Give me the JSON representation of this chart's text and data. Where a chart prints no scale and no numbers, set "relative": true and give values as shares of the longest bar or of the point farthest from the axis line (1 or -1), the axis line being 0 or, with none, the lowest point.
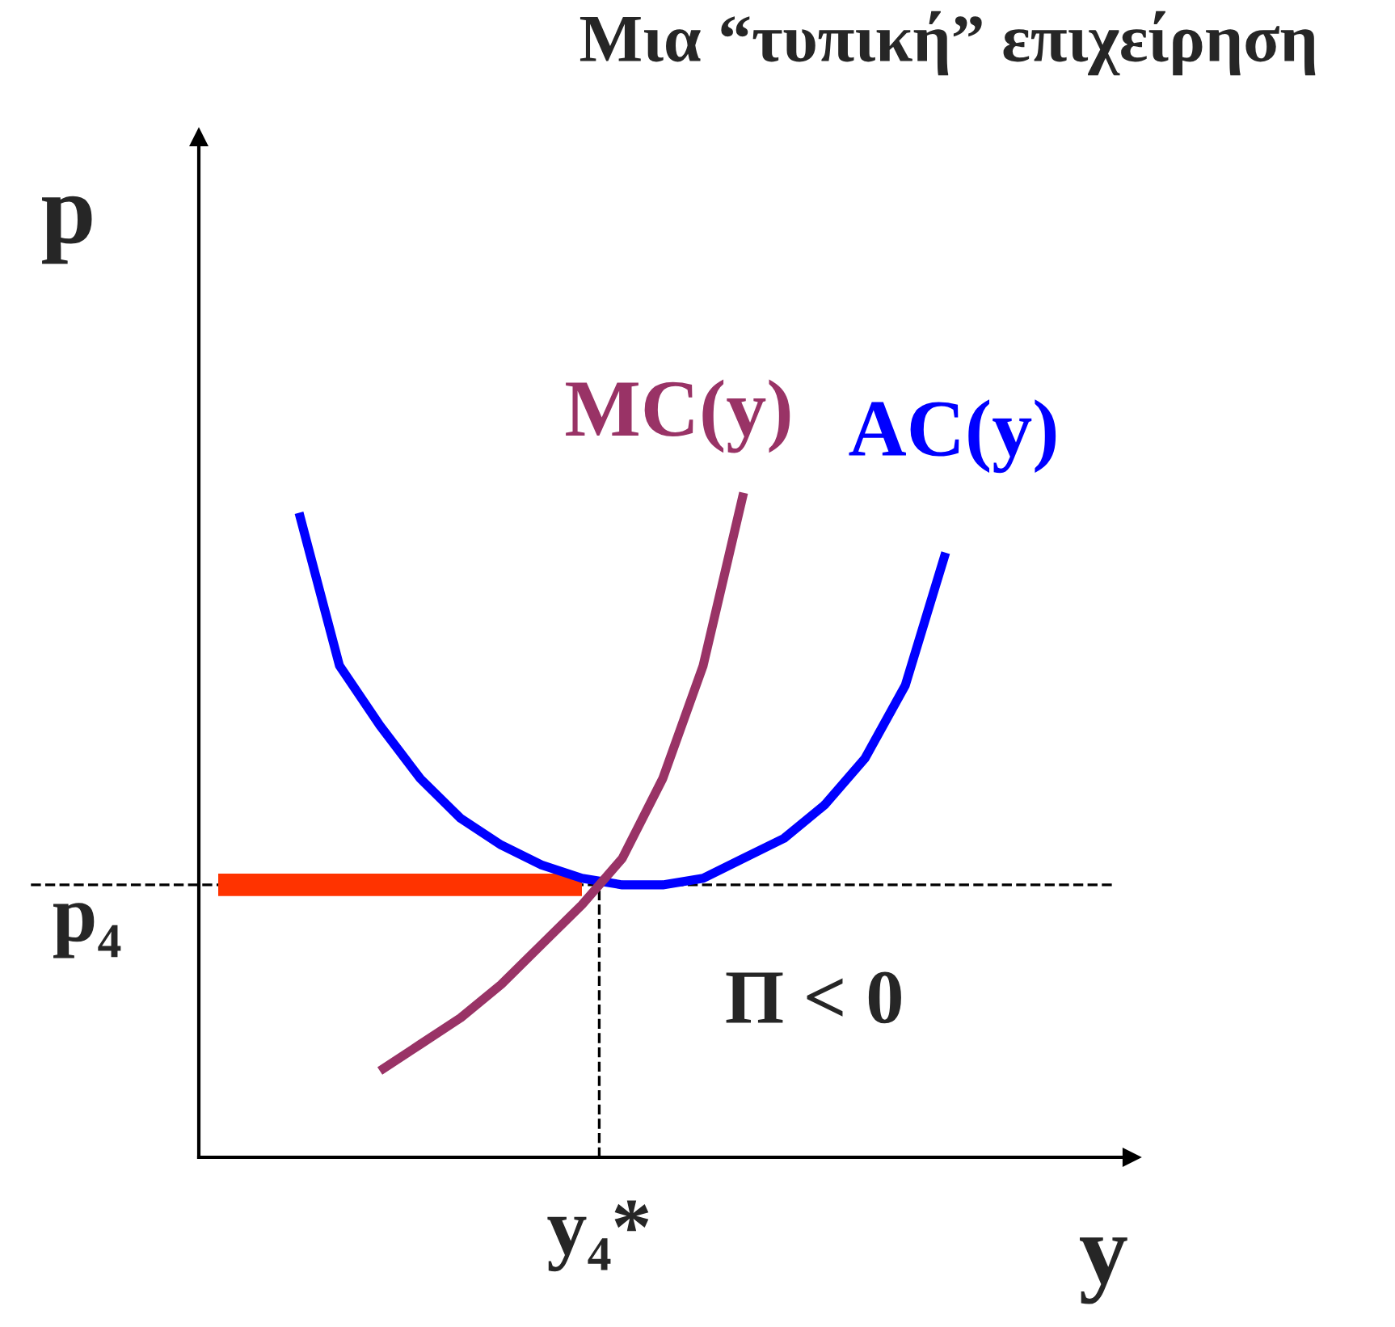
{
  "chart_data": {
    "type": "line",
    "title": "Μια “τυπική” επιχείρηση",
    "xlabel": "y",
    "ylabel": "p",
    "relative": true,
    "legend": false,
    "categories": [
      null,
      null,
      null,
      null,
      null,
      null,
      null,
      null,
      null,
      null,
      null,
      null,
      null,
      null,
      null,
      null,
      null,
      null,
      null,
      null,
      null,
      null,
      null
    ],
    "series": [
      {
        "name": "MC(y)",
        "color": "#993366",
        "values": [
          null,
          null,
          null,
          null,
          0.13,
          0.17,
          0.21,
          0.26,
          0.32,
          0.38,
          0.45,
          0.57,
          0.74,
          1.0,
          null,
          null,
          null,
          null,
          null,
          null,
          null,
          null,
          null
        ]
      },
      {
        "name": "AC(y)",
        "color": "#0000ff",
        "values": [
          null,
          null,
          0.97,
          0.74,
          0.65,
          0.57,
          0.51,
          0.47,
          0.44,
          0.42,
          0.41,
          0.41,
          0.42,
          0.45,
          0.48,
          0.53,
          0.6,
          0.71,
          0.91,
          null,
          null,
          null,
          null
        ]
      },
      {
        "color": "#ff3300",
        "values": [
          0.41,
          0.41,
          0.41,
          0.41,
          0.41,
          0.41,
          0.41,
          0.41,
          0.41,
          0.41,
          null,
          null,
          null,
          null,
          null,
          null,
          null,
          null,
          null,
          null,
          null,
          null,
          null
        ]
      }
    ],
    "ref_lines": [
      {
        "axis": "y",
        "value": 0.41,
        "label": "p₄",
        "line_style": "dashed"
      }
    ],
    "annotations": [
      "Π < 0",
      "y₄*"
    ]
  }
}
